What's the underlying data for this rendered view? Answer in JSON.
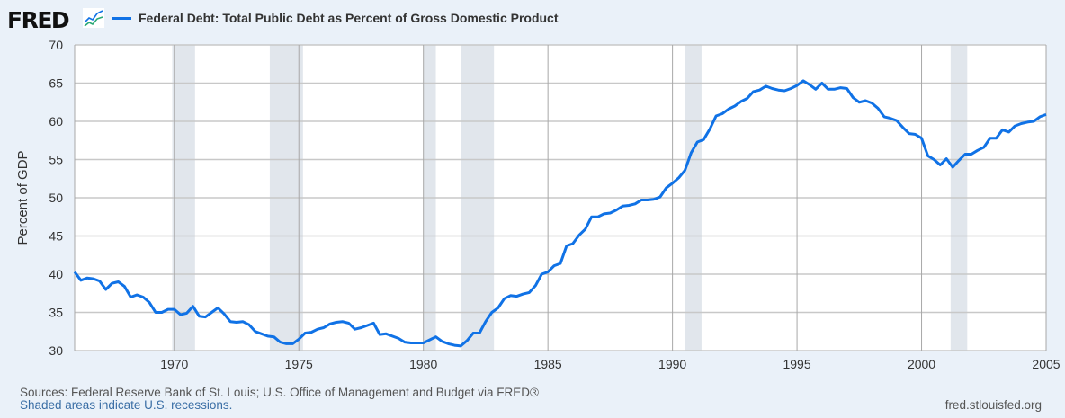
{
  "header": {
    "logo_text": "FRED",
    "logo_icon": "line-chart-icon",
    "legend_label": "Federal Debt: Total Public Debt as Percent of Gross Domestic Product"
  },
  "footer": {
    "sources": "Sources: Federal Reserve Bank of St. Louis; U.S. Office of Management and Budget via FRED®",
    "recession_note": "Shaded areas indicate U.S. recessions.",
    "site": "fred.stlouisfed.org"
  },
  "chart_data": {
    "type": "line",
    "title": "",
    "xlabel": "",
    "ylabel": "Percent of GDP",
    "xlim": [
      "1966-01-01",
      "2005-01-01"
    ],
    "ylim": [
      30,
      70
    ],
    "grid": true,
    "legend_position": "top-left",
    "line_color": "#1072e6",
    "recession_color": "#e1e6ec",
    "x_ticks": [
      "1970",
      "1975",
      "1980",
      "1985",
      "1990",
      "1995",
      "2000",
      "2005"
    ],
    "y_ticks": [
      "30",
      "35",
      "40",
      "45",
      "50",
      "55",
      "60",
      "65",
      "70"
    ],
    "recessions": [
      [
        "1969-12-01",
        "1970-11-01"
      ],
      [
        "1973-11-01",
        "1975-03-01"
      ],
      [
        "1980-01-01",
        "1980-07-01"
      ],
      [
        "1981-07-01",
        "1982-11-01"
      ],
      [
        "1990-07-01",
        "1991-03-01"
      ],
      [
        "2001-03-01",
        "2001-11-01"
      ]
    ],
    "series": [
      {
        "name": "Federal Debt: Total Public Debt as Percent of Gross Domestic Product",
        "start": "1966-01-01",
        "frequency": "quarterly",
        "values": [
          40.3,
          39.2,
          39.5,
          39.4,
          39.1,
          38.0,
          38.8,
          39.0,
          38.4,
          37.0,
          37.3,
          37.0,
          36.3,
          35.0,
          35.0,
          35.4,
          35.4,
          34.7,
          34.9,
          35.8,
          34.5,
          34.4,
          35.0,
          35.6,
          34.8,
          33.8,
          33.7,
          33.8,
          33.4,
          32.5,
          32.2,
          31.9,
          31.8,
          31.1,
          30.9,
          30.9,
          31.5,
          32.3,
          32.4,
          32.8,
          33.0,
          33.5,
          33.7,
          33.8,
          33.6,
          32.8,
          33.0,
          33.3,
          33.6,
          32.1,
          32.2,
          31.9,
          31.6,
          31.1,
          31.0,
          31.0,
          31.0,
          31.4,
          31.8,
          31.2,
          30.9,
          30.7,
          30.6,
          31.3,
          32.3,
          32.3,
          33.8,
          35.0,
          35.6,
          36.8,
          37.2,
          37.1,
          37.4,
          37.6,
          38.5,
          40.0,
          40.3,
          41.1,
          41.4,
          43.7,
          44.0,
          45.1,
          45.9,
          47.5,
          47.5,
          47.9,
          48.0,
          48.4,
          48.9,
          49.0,
          49.2,
          49.7,
          49.7,
          49.8,
          50.1,
          51.3,
          51.9,
          52.6,
          53.6,
          55.9,
          57.3,
          57.6,
          59.0,
          60.7,
          61.0,
          61.6,
          62.0,
          62.6,
          63.0,
          63.9,
          64.1,
          64.6,
          64.3,
          64.1,
          64.0,
          64.3,
          64.7,
          65.3,
          64.8,
          64.2,
          65.0,
          64.2,
          64.2,
          64.4,
          64.3,
          63.1,
          62.5,
          62.7,
          62.4,
          61.7,
          60.6,
          60.4,
          60.1,
          59.2,
          58.4,
          58.3,
          57.8,
          55.5,
          55.0,
          54.3,
          55.1,
          54.0,
          54.9,
          55.7,
          55.7,
          56.2,
          56.6,
          57.8,
          57.8,
          58.9,
          58.6,
          59.4,
          59.7,
          59.9,
          60.0,
          60.6,
          60.9
        ]
      }
    ]
  }
}
